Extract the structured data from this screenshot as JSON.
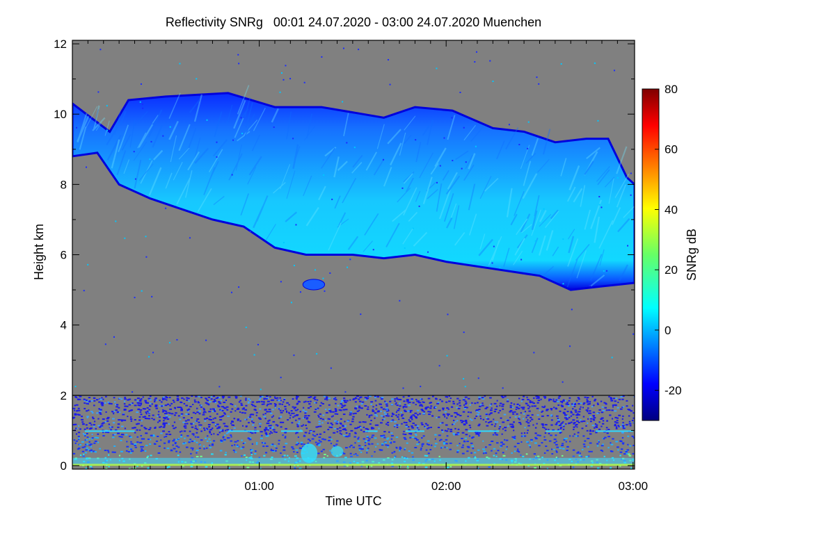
{
  "chart_data": {
    "type": "heatmap",
    "title": "Reflectivity SNRg   00:01 24.07.2020 - 03:00 24.07.2020 Muenchen",
    "xlabel": "Time UTC",
    "ylabel": "Height km",
    "x_ticks": [
      {
        "label": "01:00",
        "value": 60
      },
      {
        "label": "02:00",
        "value": 120
      },
      {
        "label": "03:00",
        "value": 180
      }
    ],
    "y_ticks": [
      0,
      2,
      4,
      6,
      8,
      10,
      12
    ],
    "xlim": [
      0.0,
      180.5
    ],
    "ylim": [
      -0.1,
      12.1
    ],
    "lower_panel_top_km": 2.0,
    "colorbar": {
      "label": "SNRg dB",
      "range": [
        -30,
        80
      ],
      "ticks": [
        -20,
        0,
        20,
        40,
        60,
        80
      ],
      "colormap": "jet"
    },
    "colors": {
      "background": "#808080",
      "no_signal": "#808080"
    },
    "cloud": {
      "top_km": [
        {
          "t": 0,
          "h": 10.3
        },
        {
          "t": 12,
          "h": 9.5
        },
        {
          "t": 18,
          "h": 10.4
        },
        {
          "t": 30,
          "h": 10.5
        },
        {
          "t": 50,
          "h": 10.6
        },
        {
          "t": 65,
          "h": 10.2
        },
        {
          "t": 80,
          "h": 10.2
        },
        {
          "t": 100,
          "h": 9.9
        },
        {
          "t": 110,
          "h": 10.2
        },
        {
          "t": 122,
          "h": 10.1
        },
        {
          "t": 135,
          "h": 9.6
        },
        {
          "t": 145,
          "h": 9.5
        },
        {
          "t": 155,
          "h": 9.2
        },
        {
          "t": 165,
          "h": 9.3
        },
        {
          "t": 172,
          "h": 9.3
        },
        {
          "t": 178,
          "h": 8.2
        },
        {
          "t": 180.5,
          "h": 8.0
        }
      ],
      "base_km": [
        {
          "t": 0,
          "h": 8.8
        },
        {
          "t": 8,
          "h": 8.9
        },
        {
          "t": 15,
          "h": 8.0
        },
        {
          "t": 25,
          "h": 7.6
        },
        {
          "t": 35,
          "h": 7.3
        },
        {
          "t": 45,
          "h": 7.0
        },
        {
          "t": 55,
          "h": 6.8
        },
        {
          "t": 65,
          "h": 6.2
        },
        {
          "t": 75,
          "h": 6.0
        },
        {
          "t": 90,
          "h": 6.0
        },
        {
          "t": 100,
          "h": 5.9
        },
        {
          "t": 110,
          "h": 6.0
        },
        {
          "t": 120,
          "h": 5.8
        },
        {
          "t": 135,
          "h": 5.6
        },
        {
          "t": 150,
          "h": 5.4
        },
        {
          "t": 160,
          "h": 5.0
        },
        {
          "t": 170,
          "h": 5.1
        },
        {
          "t": 180.5,
          "h": 5.2
        }
      ],
      "core_snr_db": 5,
      "edge_snr_db": -22
    },
    "small_cell": {
      "t_start": 74,
      "t_end": 81,
      "h_bottom": 5.0,
      "h_top": 5.3
    }
  }
}
